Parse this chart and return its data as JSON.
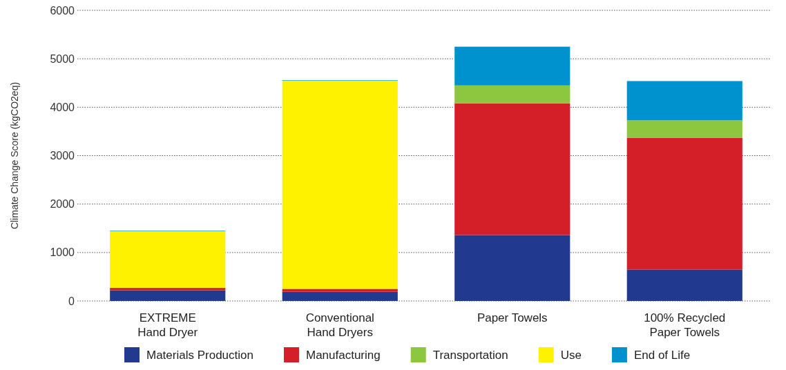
{
  "chart_data": {
    "type": "bar",
    "stacked": true,
    "ylabel": "Climate Change Score (kgCO2eq)",
    "categories": [
      "EXTREME\nHand Dryer",
      "Conventional\nHand Dryers",
      "Paper Towels",
      "100% Recycled\nPaper Towels"
    ],
    "series": [
      {
        "name": "Materials Production",
        "color": "#21398f",
        "values": [
          220,
          190,
          1360,
          650
        ]
      },
      {
        "name": "Manufacturing",
        "color": "#d41f28",
        "values": [
          50,
          60,
          2720,
          2720
        ]
      },
      {
        "name": "Transportation",
        "color": "#8dc63f",
        "values": [
          null,
          null,
          370,
          360
        ]
      },
      {
        "name": "Use",
        "color": "#fff200",
        "values": [
          1170,
          4300,
          0,
          0
        ]
      },
      {
        "name": "End of Life",
        "color": "#0092cf",
        "values": [
          10,
          10,
          800,
          810
        ]
      }
    ],
    "ylim": [
      0,
      6000
    ],
    "yticks": [
      0,
      1000,
      2000,
      3000,
      4000,
      5000,
      6000
    ],
    "grid": "y",
    "legend": "bottom"
  }
}
